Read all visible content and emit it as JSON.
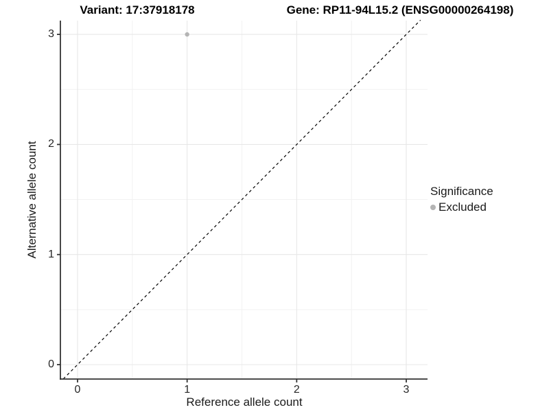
{
  "titles": {
    "variant": "Variant: 17:37918178",
    "gene": "Gene: RP11-94L15.2 (ENSG00000264198)"
  },
  "chart_data": {
    "type": "scatter",
    "xlabel": "Reference allele count",
    "ylabel": "Alternative allele count",
    "xticks": [
      0,
      1,
      2,
      3
    ],
    "yticks": [
      0,
      1,
      2,
      3
    ],
    "minor_grid_step": 0.5,
    "xlim": [
      -0.16,
      3.19
    ],
    "ylim": [
      -0.13,
      3.13
    ],
    "grid": true,
    "points": [
      {
        "x": 1,
        "y": 3,
        "significance": "Excluded"
      }
    ],
    "reference_line": {
      "type": "identity",
      "slope": 1,
      "intercept": 0,
      "style": "dashed",
      "color": "#000000"
    },
    "legend": {
      "title": "Significance",
      "position": "right",
      "items": [
        {
          "label": "Excluded",
          "color": "#b4b4b4",
          "marker": "circle"
        }
      ]
    },
    "colors": {
      "point": "#b4b4b4",
      "grid_major": "#e7e7e7",
      "grid_minor": "#f2f2f2",
      "axis_line": "#333333"
    }
  }
}
